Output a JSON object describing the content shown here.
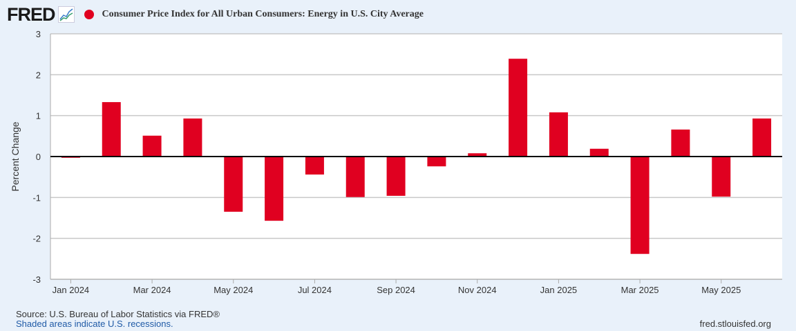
{
  "header": {
    "logo": "FRED",
    "title": "Consumer Price Index for All Urban Consumers: Energy in U.S. City Average",
    "series_color": "#e00020"
  },
  "footer": {
    "source": "Source: U.S. Bureau of Labor Statistics via FRED®",
    "recessions": "Shaded areas indicate U.S. recessions.",
    "site": "fred.stlouisfed.org"
  },
  "chart_data": {
    "type": "bar",
    "title": "Consumer Price Index for All Urban Consumers: Energy in U.S. City Average",
    "ylabel": "Percent Change",
    "xlabel": "",
    "ylim": [
      -3,
      3
    ],
    "yticks": [
      3,
      2,
      1,
      0,
      -1,
      -2,
      -3
    ],
    "categories": [
      "Jan 2024",
      "Feb 2024",
      "Mar 2024",
      "Apr 2024",
      "May 2024",
      "Jun 2024",
      "Jul 2024",
      "Aug 2024",
      "Sep 2024",
      "Oct 2024",
      "Nov 2024",
      "Dec 2024",
      "Jan 2025",
      "Feb 2025",
      "Mar 2025",
      "Apr 2025",
      "May 2025",
      "Jun 2025"
    ],
    "xtick_labels": [
      "Jan 2024",
      "Mar 2024",
      "May 2024",
      "Jul 2024",
      "Sep 2024",
      "Nov 2024",
      "Jan 2025",
      "Mar 2025",
      "May 2025"
    ],
    "values": [
      -0.03,
      1.33,
      0.51,
      0.93,
      -1.35,
      -1.57,
      -0.44,
      -0.99,
      -0.96,
      -0.24,
      0.08,
      2.39,
      1.08,
      0.19,
      -2.38,
      0.66,
      -0.98,
      0.93
    ],
    "grid": true
  }
}
